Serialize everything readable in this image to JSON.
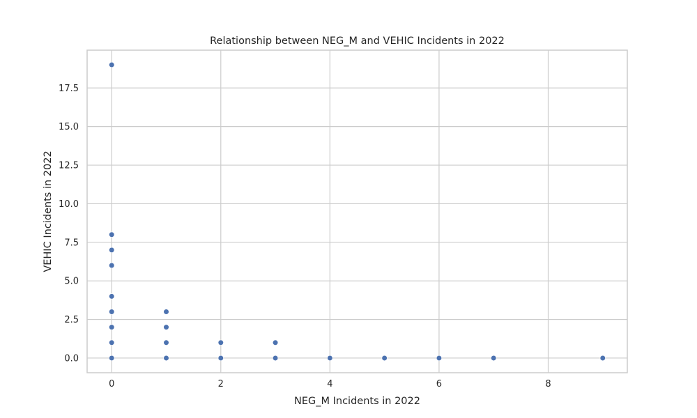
{
  "chart_data": {
    "type": "scatter",
    "title": "Relationship between NEG_M and VEHIC Incidents in 2022",
    "xlabel": "NEG_M Incidents in 2022",
    "ylabel": "VEHIC Incidents in 2022",
    "xlim": [
      -0.45,
      9.45
    ],
    "ylim": [
      -0.95,
      19.95
    ],
    "x_ticks": [
      0,
      2,
      4,
      6,
      8
    ],
    "x_tick_labels": [
      "0",
      "2",
      "4",
      "6",
      "8"
    ],
    "y_ticks": [
      0,
      2.5,
      5,
      7.5,
      10,
      12.5,
      15,
      17.5
    ],
    "y_tick_labels": [
      "0.0",
      "2.5",
      "5.0",
      "7.5",
      "10.0",
      "12.5",
      "15.0",
      "17.5"
    ],
    "grid": true,
    "legend": "none",
    "point_color": "#4c72b0",
    "points": [
      {
        "x": 0,
        "y": 19
      },
      {
        "x": 0,
        "y": 8
      },
      {
        "x": 0,
        "y": 7
      },
      {
        "x": 0,
        "y": 6
      },
      {
        "x": 0,
        "y": 4
      },
      {
        "x": 0,
        "y": 3
      },
      {
        "x": 0,
        "y": 2
      },
      {
        "x": 0,
        "y": 1
      },
      {
        "x": 0,
        "y": 0
      },
      {
        "x": 1,
        "y": 3
      },
      {
        "x": 1,
        "y": 2
      },
      {
        "x": 1,
        "y": 1
      },
      {
        "x": 1,
        "y": 0
      },
      {
        "x": 2,
        "y": 1
      },
      {
        "x": 2,
        "y": 0
      },
      {
        "x": 3,
        "y": 1
      },
      {
        "x": 3,
        "y": 0
      },
      {
        "x": 4,
        "y": 0
      },
      {
        "x": 5,
        "y": 0
      },
      {
        "x": 6,
        "y": 0
      },
      {
        "x": 7,
        "y": 0
      },
      {
        "x": 9,
        "y": 0
      }
    ]
  }
}
